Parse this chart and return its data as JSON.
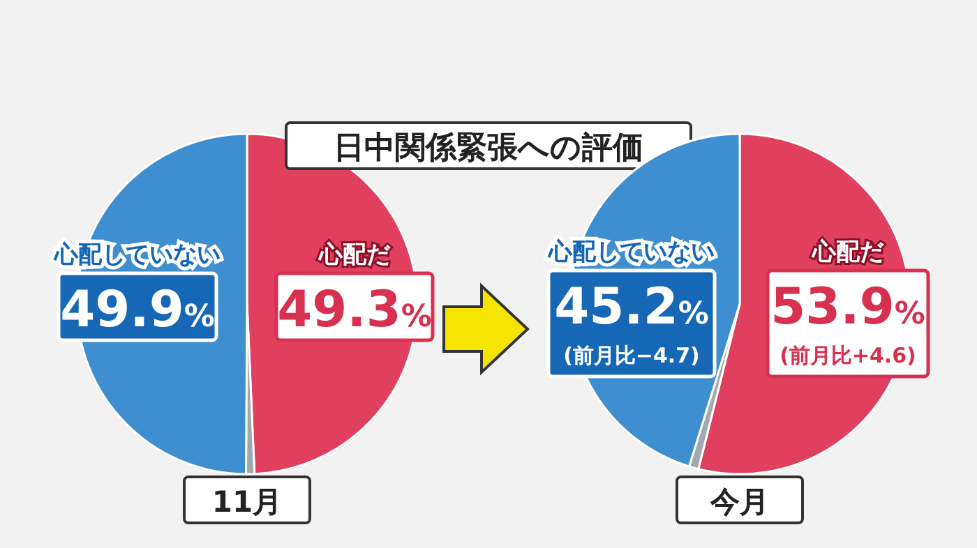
{
  "chart_data": [
    {
      "type": "pie",
      "title": "日中関係緊張への評価",
      "xlabel": "11月",
      "categories": [
        "心配だ",
        null,
        "心配していない"
      ],
      "values": [
        49.3,
        0.8,
        49.9
      ],
      "colors": [
        "#e0405e",
        "#a0a8b0",
        "#3f8fd0"
      ],
      "value_labels": [
        "49.3%",
        null,
        "49.9%"
      ]
    },
    {
      "type": "pie",
      "xlabel": "今月",
      "categories": [
        "心配だ",
        null,
        "心配していない"
      ],
      "values": [
        53.9,
        0.9,
        45.2
      ],
      "colors": [
        "#e0405e",
        "#a0a8b0",
        "#3f8fd0"
      ],
      "value_labels": [
        "53.9%",
        null,
        "45.2%"
      ],
      "annotations": [
        "(前月比+4.6)",
        "(前月比−4.7)"
      ]
    }
  ]
}
